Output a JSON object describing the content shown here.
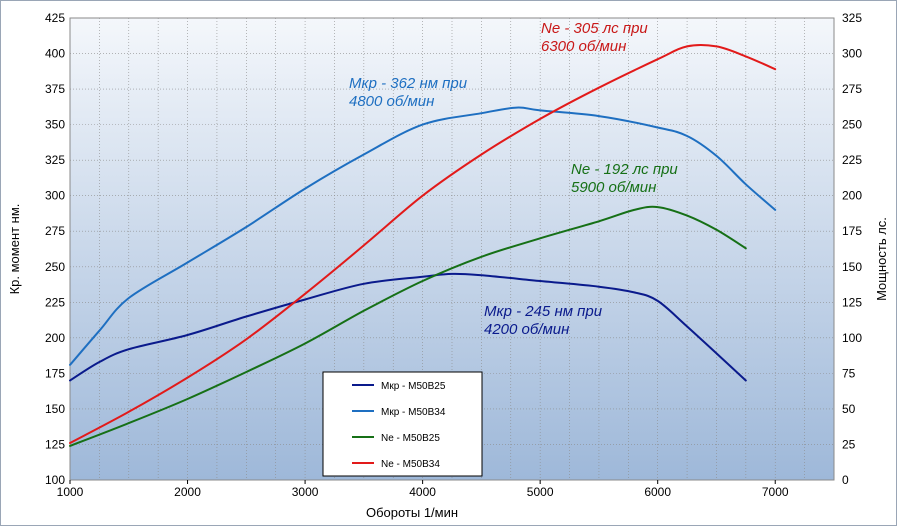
{
  "chart_data": {
    "type": "line",
    "xlabel": "Обороты  1/мин",
    "ylabel_left": "Кр.  момент  нм.",
    "ylabel_right": "Мощность  лс.",
    "xlim": [
      1000,
      7500
    ],
    "ylim_left": [
      100,
      425
    ],
    "ylim_right": [
      0,
      325
    ],
    "x_ticks": [
      "1000",
      "2000",
      "3000",
      "4000",
      "5000",
      "6000",
      "7000"
    ],
    "y_left_ticks": [
      "100",
      "125",
      "150",
      "175",
      "200",
      "225",
      "250",
      "275",
      "300",
      "325",
      "350",
      "375",
      "400",
      "425"
    ],
    "y_right_ticks": [
      "0",
      "25",
      "50",
      "75",
      "100",
      "125",
      "150",
      "175",
      "200",
      "225",
      "250",
      "275",
      "300",
      "325"
    ],
    "grid": true,
    "legend_position": "bottom-left",
    "series": [
      {
        "name": "Мкр - M50B25",
        "axis": "left",
        "color": "#0a1a8c",
        "x": [
          1000,
          1250,
          1500,
          2000,
          2500,
          3000,
          3500,
          4000,
          4250,
          4500,
          5000,
          5500,
          5800,
          6000,
          6250,
          6750
        ],
        "y": [
          170,
          183,
          192,
          202,
          215,
          227,
          238,
          243,
          245,
          244,
          240,
          236,
          232,
          226,
          208,
          170
        ]
      },
      {
        "name": "Мкр - M50B34",
        "axis": "left",
        "color": "#1e6fc1",
        "x": [
          1000,
          1250,
          1500,
          2000,
          2500,
          3000,
          3500,
          4000,
          4500,
          4800,
          5000,
          5500,
          6000,
          6250,
          6500,
          6750,
          7000
        ],
        "y": [
          181,
          205,
          228,
          253,
          278,
          305,
          329,
          350,
          358,
          362,
          360,
          356,
          348,
          342,
          328,
          308,
          290
        ]
      },
      {
        "name": "Ne  - M50B25",
        "axis": "right",
        "color": "#167016",
        "x": [
          1000,
          1500,
          2000,
          2500,
          3000,
          3500,
          4000,
          4500,
          5000,
          5500,
          5800,
          6000,
          6250,
          6500,
          6750
        ],
        "y": [
          24,
          40,
          57,
          76,
          96,
          119,
          140,
          157,
          170,
          182,
          190,
          192,
          186,
          176,
          163
        ]
      },
      {
        "name": "Ne  - M50B34",
        "axis": "right",
        "color": "#e21a1a",
        "x": [
          1000,
          1500,
          2000,
          2500,
          3000,
          3500,
          4000,
          4500,
          5000,
          5500,
          6000,
          6250,
          6500,
          6750,
          7000
        ],
        "y": [
          26,
          48,
          72,
          99,
          131,
          165,
          200,
          229,
          254,
          276,
          296,
          305,
          305,
          298,
          289
        ]
      }
    ],
    "annotations": [
      {
        "line1": "Ne - 305 лс при",
        "line2": "6300 об/мин",
        "color": "#c81818"
      },
      {
        "line1": "Мкр - 362 нм при",
        "line2": "4800 об/мин",
        "color": "#1e6fc1"
      },
      {
        "line1": "Ne - 192 лс при",
        "line2": "5900 об/мин",
        "color": "#167016"
      },
      {
        "line1": "Мкр - 245 нм при",
        "line2": "4200 об/мин",
        "color": "#0a1a8c"
      }
    ]
  }
}
